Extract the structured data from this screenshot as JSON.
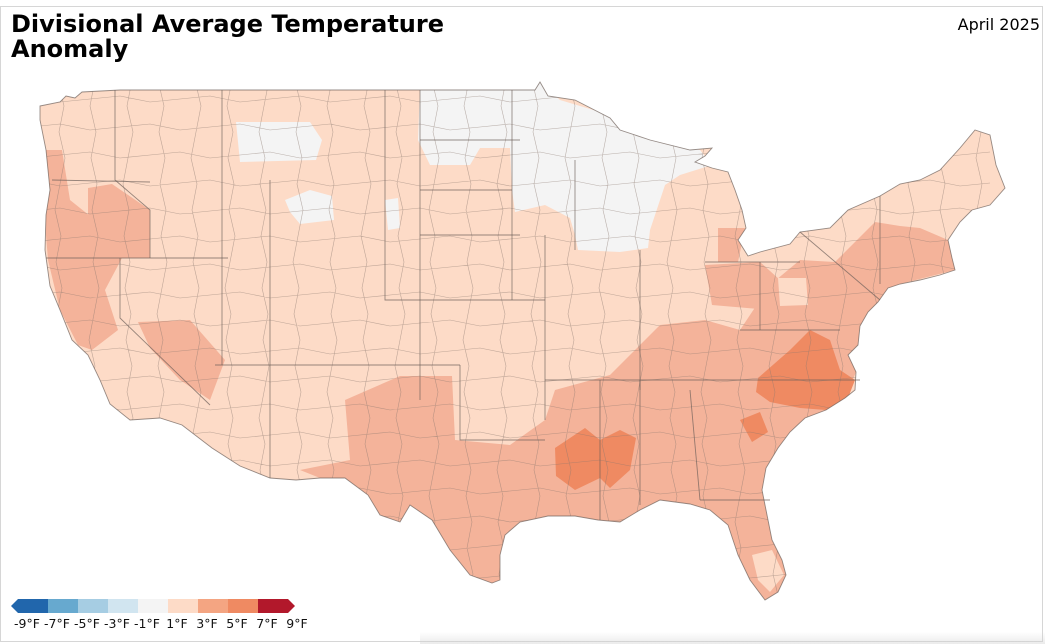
{
  "title": "Divisional Average Temperature Anomaly",
  "period": "April 2025",
  "legend": {
    "labels": [
      "-9°F",
      "-7°F",
      "-5°F",
      "-3°F",
      "-1°F",
      "1°F",
      "3°F",
      "5°F",
      "7°F",
      "9°F"
    ],
    "colors": [
      "#2166ac",
      "#67a9cf",
      "#a6cde3",
      "#d1e5f0",
      "#f4f4f4",
      "#fddbc7",
      "#f4a582",
      "#ef8a62",
      "#b2182b"
    ],
    "under_color": "#2166ac",
    "over_color": "#b2182b"
  },
  "colors": {
    "neutral": "#f4f4f4",
    "slightly_warm": "#fddbc7",
    "warm": "#f4b39a",
    "warmer": "#ef8a62",
    "division_border": "#7f6f69",
    "state_border": "#6b5e58"
  },
  "regions": [
    {
      "name": "northern-plains-upper-midwest",
      "anomaly_class": "-1°F to 1°F"
    },
    {
      "name": "eastern-montana",
      "anomaly_class": "-1°F to 1°F"
    },
    {
      "name": "northwest-wyoming",
      "anomaly_class": "-1°F to 1°F"
    },
    {
      "name": "west-coast",
      "anomaly_class": "3°F to 5°F"
    },
    {
      "name": "southern-plains-gulf",
      "anomaly_class": "3°F to 5°F"
    },
    {
      "name": "mid-south",
      "anomaly_class": "5°F to 7°F"
    },
    {
      "name": "carolinas-virginia",
      "anomaly_class": "5°F to 7°F"
    },
    {
      "name": "interior-west",
      "anomaly_class": "1°F to 3°F"
    }
  ]
}
